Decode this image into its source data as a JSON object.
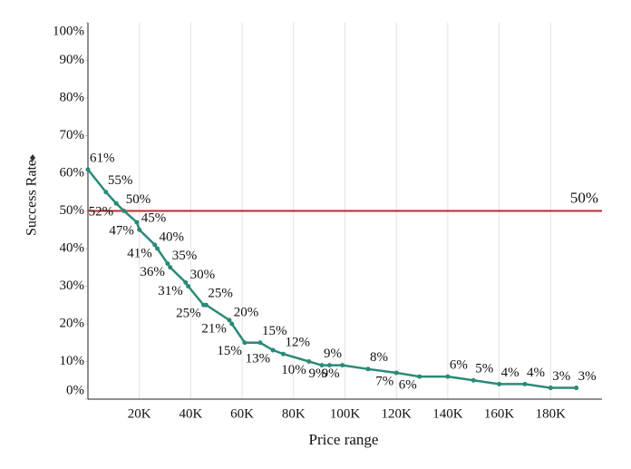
{
  "chart_data": {
    "type": "line",
    "x_label": "Price range",
    "y_label": "Success Rate",
    "x": [
      0,
      7000,
      11000,
      14000,
      19000,
      20000,
      26000,
      27000,
      31000,
      32000,
      38000,
      39000,
      45000,
      46000,
      55000,
      56000,
      61000,
      67000,
      72000,
      76000,
      86000,
      91000,
      94000,
      99000,
      109000,
      120000,
      129000,
      140000,
      150000,
      160000,
      170000,
      180000,
      190000
    ],
    "series": [
      {
        "color": "#2a8a78",
        "values": [
          61,
          55,
          52,
          50,
          47,
          45,
          41,
          40,
          36,
          35,
          31,
          30,
          25,
          25,
          21,
          20,
          15,
          15,
          13,
          12,
          10,
          9,
          9,
          9,
          8,
          7,
          6,
          6,
          5,
          4,
          4,
          3,
          3
        ],
        "value_labels": [
          "61%",
          "55%",
          "52%",
          "50%",
          "47%",
          "45%",
          "41%",
          "40%",
          "36%",
          "35%",
          "31%",
          "30%",
          "25%",
          "25%",
          "21%",
          "20%",
          "15%",
          "15%",
          "13%",
          "12%",
          "10%",
          "9%",
          "9%",
          "9%",
          "8%",
          "7%",
          "6%",
          "6%",
          "5%",
          "4%",
          "4%",
          "3%",
          "3%"
        ]
      }
    ],
    "reference_line": {
      "value": 50,
      "label": "50%",
      "color": "#c0282a"
    },
    "xlim": [
      0,
      200000
    ],
    "xticks": [
      {
        "value": 20000,
        "label": "20K"
      },
      {
        "value": 40000,
        "label": "40K"
      },
      {
        "value": 60000,
        "label": "60K"
      },
      {
        "value": 80000,
        "label": "80K"
      },
      {
        "value": 100000,
        "label": "100K"
      },
      {
        "value": 120000,
        "label": "120K"
      },
      {
        "value": 140000,
        "label": "140K"
      },
      {
        "value": 160000,
        "label": "160K"
      },
      {
        "value": 180000,
        "label": "180K"
      }
    ],
    "ylim": [
      0,
      100
    ],
    "yticks": [
      {
        "value": 0,
        "label": "0%"
      },
      {
        "value": 10,
        "label": "10%"
      },
      {
        "value": 20,
        "label": "20%"
      },
      {
        "value": 30,
        "label": "30%"
      },
      {
        "value": 40,
        "label": "40%"
      },
      {
        "value": 50,
        "label": "50%"
      },
      {
        "value": 60,
        "label": "60%"
      },
      {
        "value": 70,
        "label": "70%"
      },
      {
        "value": 80,
        "label": "80%"
      },
      {
        "value": 90,
        "label": "90%"
      },
      {
        "value": 100,
        "label": "100%"
      }
    ],
    "grid": true
  }
}
